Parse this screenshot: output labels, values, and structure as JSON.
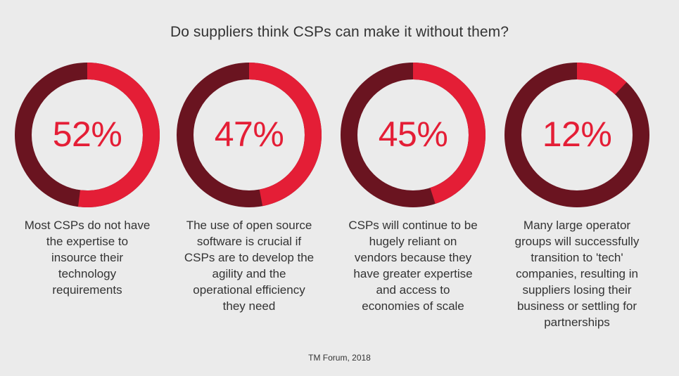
{
  "title": "Do suppliers think CSPs can make it without them?",
  "source": "TM Forum, 2018",
  "colors": {
    "highlight": "#e41e36",
    "remainder": "#6a1420",
    "text": "#333333",
    "background": "#ebebeb"
  },
  "chart_data": {
    "type": "pie",
    "items": [
      {
        "value": 52,
        "value_label": "52%",
        "caption_lines": [
          "Most CSPs do not have",
          "the expertise to",
          "insource their",
          "technology",
          "requirements"
        ]
      },
      {
        "value": 47,
        "value_label": "47%",
        "caption_lines": [
          "The use of open source",
          "software is crucial if",
          "CSPs are to develop the",
          "agility and the",
          "operational efficiency",
          "they need"
        ]
      },
      {
        "value": 45,
        "value_label": "45%",
        "caption_lines": [
          "CSPs will continue to be",
          "hugely reliant on",
          "vendors because they",
          "have greater expertise",
          "and access to",
          "economies of scale"
        ]
      },
      {
        "value": 12,
        "value_label": "12%",
        "caption_lines": [
          "Many large operator",
          "groups will successfully",
          "transition to 'tech'",
          "companies, resulting in",
          "suppliers losing their",
          "business or settling for",
          "partnerships"
        ]
      }
    ]
  }
}
